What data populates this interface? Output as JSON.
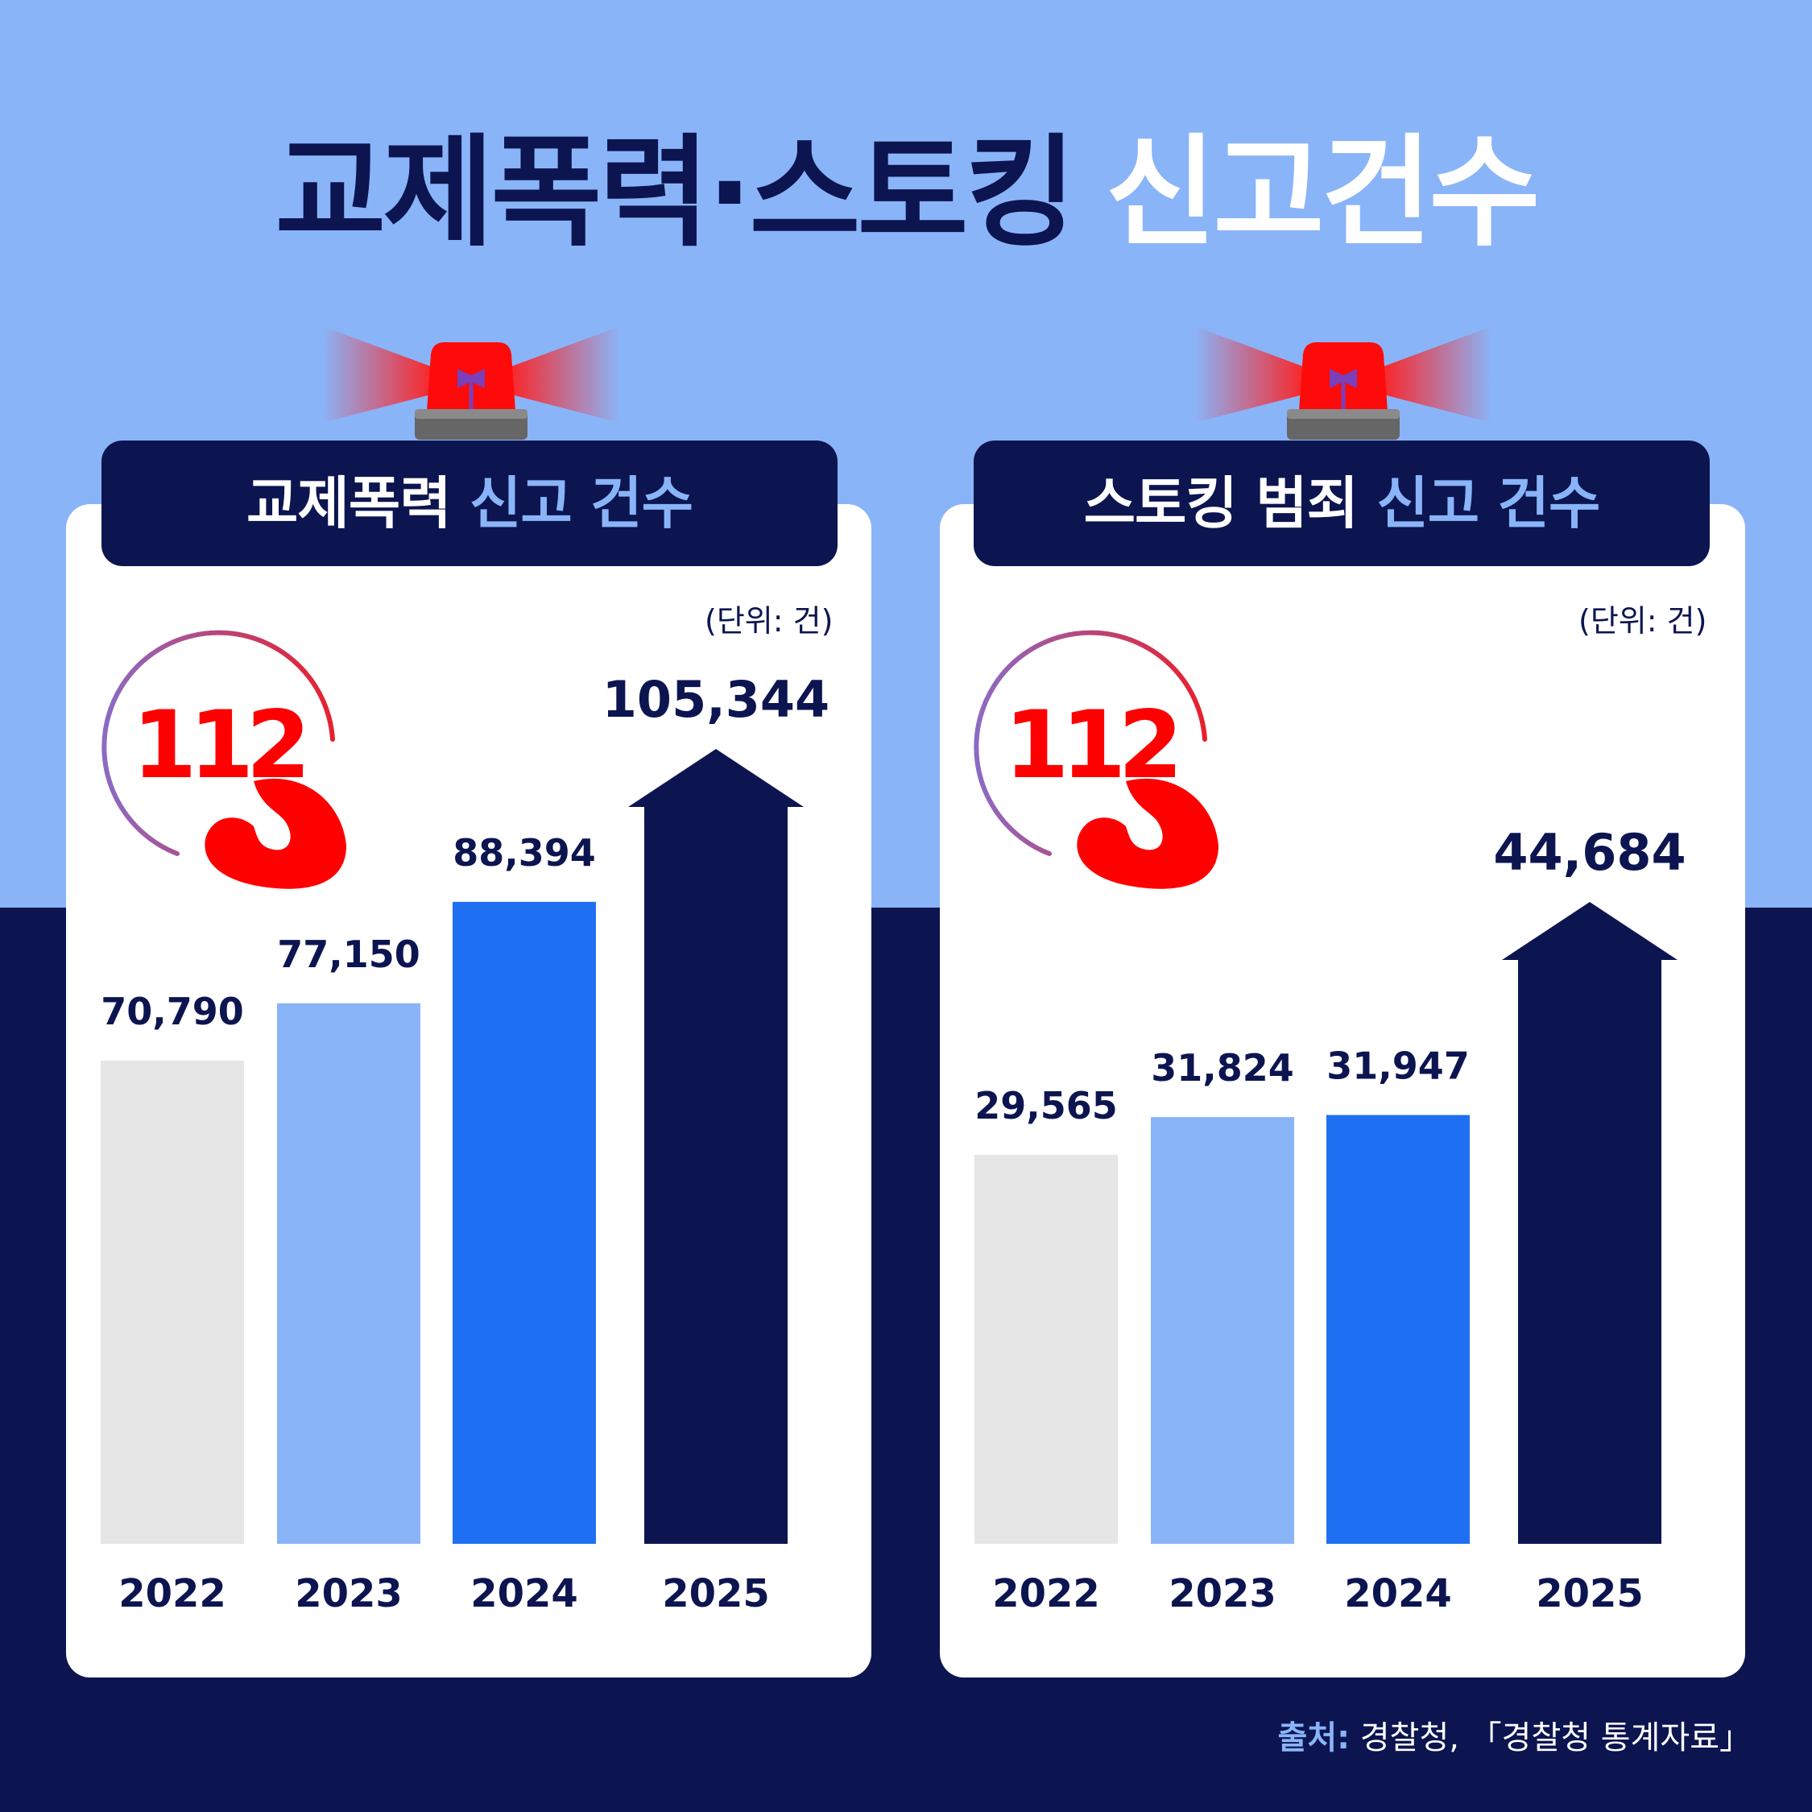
{
  "title": {
    "part1": "교제폭력·스토킹",
    "part2": "신고건수"
  },
  "colors": {
    "light_blue": "#8ab4f8",
    "navy": "#0c1550",
    "blue": "#1f6ff2",
    "gray": "#e6e6e6",
    "red": "#ff0000"
  },
  "icons": {
    "siren": "siren-icon",
    "phone": "phone-112-icon"
  },
  "panels": [
    {
      "label_main": "교제폭력",
      "label_accent": "신고 건수",
      "unit": "(단위: 건)",
      "phone_number": "112"
    },
    {
      "label_main": "스토킹 범죄",
      "label_accent": "신고 건수",
      "unit": "(단위: 건)",
      "phone_number": "112"
    }
  ],
  "chart_data": [
    {
      "type": "bar",
      "categories": [
        "2022",
        "2023",
        "2024",
        "2025"
      ],
      "values": [
        70790,
        77150,
        88394,
        105344
      ],
      "value_labels": [
        "70,790",
        "77,150",
        "88,394",
        "105,344"
      ],
      "colors": [
        "#e6e6e6",
        "#8ab4f8",
        "#1f6ff2",
        "#0c1550"
      ],
      "last_bar_style": "arrow",
      "title": "교제폭력 신고 건수",
      "unit": "(단위: 건)"
    },
    {
      "type": "bar",
      "categories": [
        "2022",
        "2023",
        "2024",
        "2025"
      ],
      "values": [
        29565,
        31824,
        31947,
        44684
      ],
      "value_labels": [
        "29,565",
        "31,824",
        "31,947",
        "44,684"
      ],
      "colors": [
        "#e6e6e6",
        "#8ab4f8",
        "#1f6ff2",
        "#0c1550"
      ],
      "last_bar_style": "arrow",
      "title": "스토킹 범죄 신고 건수",
      "unit": "(단위: 건)"
    }
  ],
  "source": {
    "label": "출처:",
    "text": "경찰청, 「경찰청 통계자료」"
  }
}
